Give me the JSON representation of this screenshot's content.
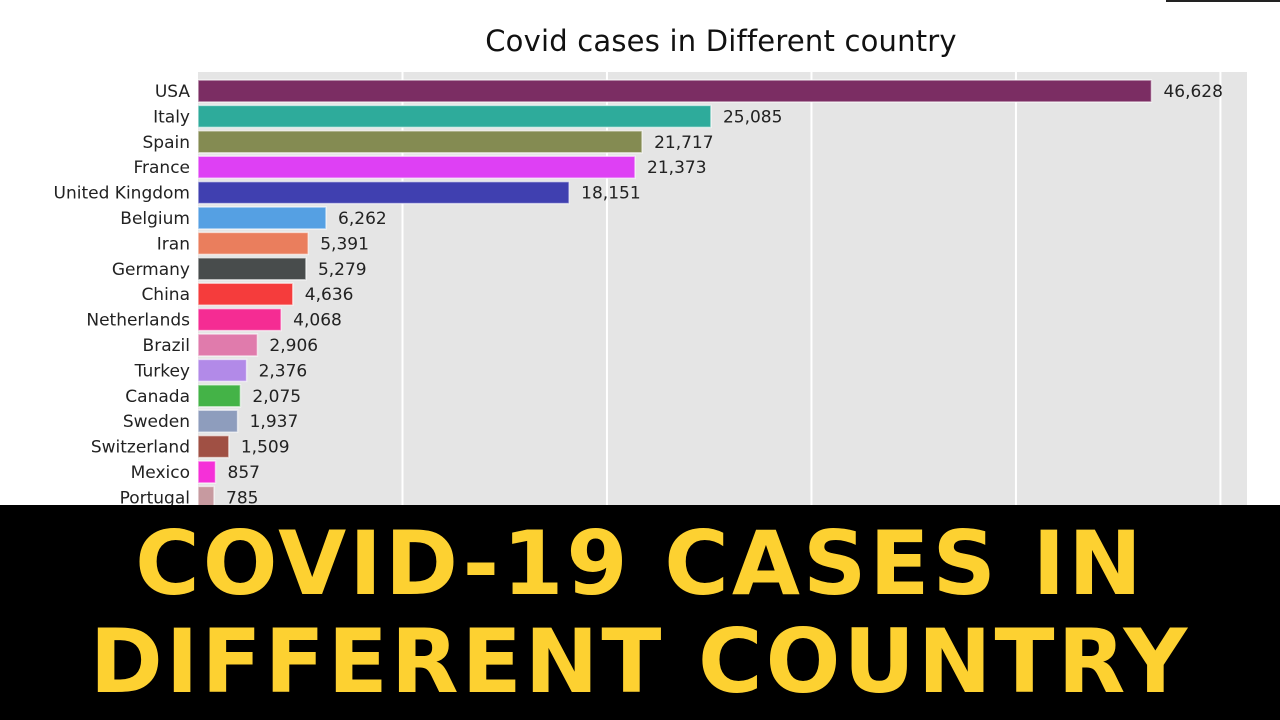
{
  "banner": {
    "line1": "COVID-19 CASES IN",
    "line2": "DIFFERENT COUNTRY",
    "text_color": "#fdd131",
    "background": "#000000"
  },
  "chart_data": {
    "type": "bar",
    "orientation": "horizontal",
    "title": "Covid cases in Different country",
    "xlabel": "",
    "ylabel": "",
    "xlim": [
      0,
      51300
    ],
    "gridlines_x": [
      10000,
      20000,
      30000,
      40000,
      50000
    ],
    "grid": true,
    "background": "#e5e5e5",
    "categories": [
      "USA",
      "Italy",
      "Spain",
      "France",
      "United Kingdom",
      "Belgium",
      "Iran",
      "Germany",
      "China",
      "Netherlands",
      "Brazil",
      "Turkey",
      "Canada",
      "Sweden",
      "Switzerland",
      "Mexico",
      "Portugal"
    ],
    "values": [
      46628,
      25085,
      21717,
      21373,
      18151,
      6262,
      5391,
      5279,
      4636,
      4068,
      2906,
      2376,
      2075,
      1937,
      1509,
      857,
      785
    ],
    "value_labels": [
      "46,628",
      "25,085",
      "21,717",
      "21,373",
      "18,151",
      "6,262",
      "5,391",
      "5,279",
      "4,636",
      "4,068",
      "2,906",
      "2,376",
      "2,075",
      "1,937",
      "1,509",
      "857",
      "785"
    ],
    "colors": [
      "#7b2d63",
      "#2eab9b",
      "#848b52",
      "#de40f4",
      "#4040b0",
      "#55a0e3",
      "#ea7e5d",
      "#484c4c",
      "#f53c3c",
      "#f52c93",
      "#e07bac",
      "#b28ae8",
      "#44b347",
      "#8e9dbd",
      "#a05044",
      "#f530d8",
      "#c79aa0"
    ]
  }
}
